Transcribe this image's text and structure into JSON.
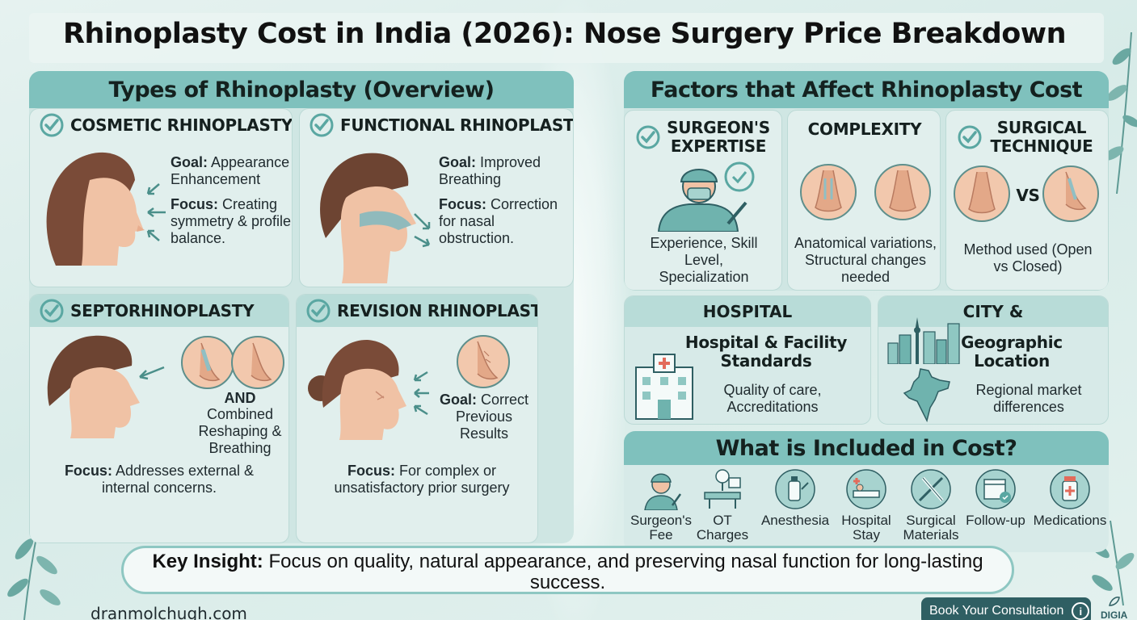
{
  "title": "Rhinoplasty Cost in India (2026): Nose Surgery Price Breakdown",
  "types": {
    "heading": "Types of Rhinoplasty (Overview)",
    "cosmetic": {
      "title": "COSMETIC RHINOPLASTY",
      "goal_label": "Goal:",
      "goal_text": " Appearance Enhancement",
      "focus_label": "Focus:",
      "focus_text": " Creating symmetry & profile balance."
    },
    "functional": {
      "title": "FUNCTIONAL RHINOPLASTY",
      "goal_label": "Goal:",
      "goal_text": " Improved Breathing",
      "focus_label": "Focus:",
      "focus_text": " Correction for nasal obstruction."
    },
    "septo": {
      "title": "SEPTORHINOPLASTY",
      "and_label": "AND",
      "combined_text": "Combined Reshaping & Breathing",
      "focus_label": "Focus:",
      "focus_text": " Addresses external & internal concerns."
    },
    "revision": {
      "title": "REVISION RHINOPLASTY",
      "goal_label": "Goal:",
      "goal_text": " Correct Previous Results",
      "focus_label": "Focus:",
      "focus_text": " For complex or unsatisfactory prior surgery"
    }
  },
  "factors": {
    "heading": "Factors that Affect Rhinoplasty Cost",
    "surgeon": {
      "title": "SURGEON'S EXPERTISE",
      "desc": "Experience, Skill Level, Specialization"
    },
    "complexity": {
      "title": "COMPLEXITY",
      "desc": "Anatomical variations, Structural changes needed"
    },
    "technique": {
      "title": "SURGICAL TECHNIQUE",
      "vs": "VS",
      "desc": "Method used (Open vs Closed)"
    },
    "hospital": {
      "title": "HOSPITAL",
      "subtitle": "Hospital & Facility Standards",
      "desc": "Quality of care, Accreditations"
    },
    "city": {
      "title": "CITY &",
      "subtitle": "Geographic Location",
      "desc": "Regional market differences"
    }
  },
  "included": {
    "heading": "What is Included in Cost?",
    "items": [
      {
        "label": "Surgeon's Fee",
        "icon": "surgeon-icon"
      },
      {
        "label": "OT Charges",
        "icon": "operating-theatre-icon"
      },
      {
        "label": "Anesthesia",
        "icon": "anesthesia-icon"
      },
      {
        "label": "Hospital Stay",
        "icon": "hospital-bed-icon"
      },
      {
        "label": "Surgical Materials",
        "icon": "surgical-tools-icon"
      },
      {
        "label": "Follow-up",
        "icon": "calendar-check-icon"
      },
      {
        "label": "Medications",
        "icon": "medicine-bottle-icon"
      }
    ]
  },
  "insight": {
    "label": "Key Insight:",
    "text": " Focus on quality, natural appearance, and preserving nasal function for long-lasting success."
  },
  "footer": {
    "url": "dranmolchugh.com",
    "cta": "Book Your Consultation",
    "cta_icon": "i",
    "brand": "DIGIA"
  },
  "colors": {
    "panel_header": "#7fc1bd",
    "panel_bg": "#cfe6e3",
    "card_bg": "#e1efed",
    "accent_teal": "#5aa7a2",
    "cta_bg": "#2f5f63"
  }
}
